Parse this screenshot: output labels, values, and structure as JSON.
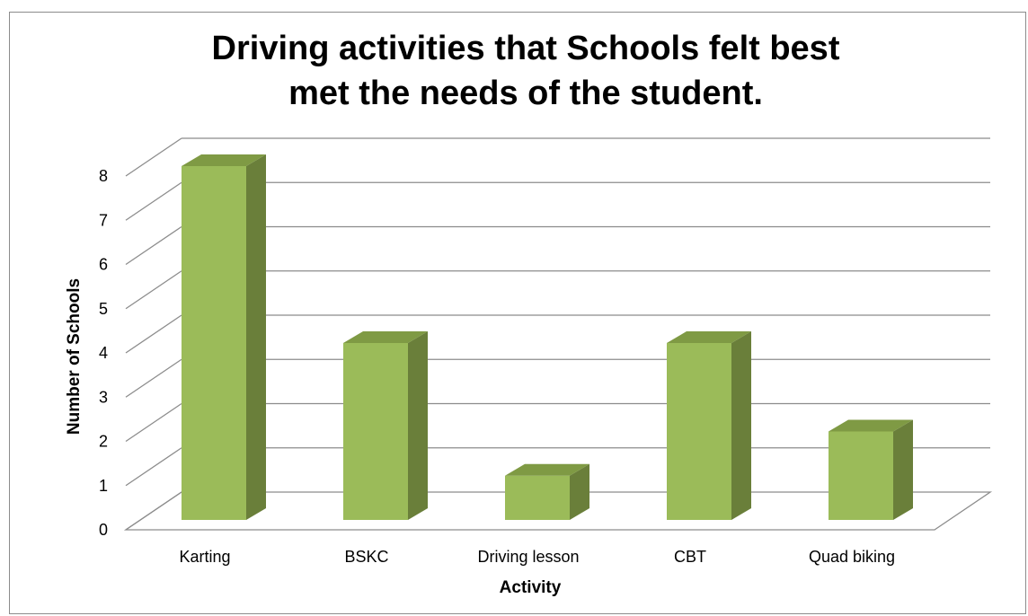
{
  "chart_data": {
    "type": "bar",
    "style": "3d-column",
    "title": "Driving activities that Schools felt best met the needs of the student.",
    "title_lines": [
      "Driving activities that Schools felt best",
      "met the needs of the student."
    ],
    "xlabel": "Activity",
    "ylabel": "Number of Schools",
    "categories": [
      "Karting",
      "BSKC",
      "Driving lesson",
      "CBT",
      "Quad biking"
    ],
    "values": [
      8,
      4,
      1,
      4,
      2
    ],
    "ylim": [
      0,
      8
    ],
    "yticks": [
      0,
      1,
      2,
      3,
      4,
      5,
      6,
      7,
      8
    ],
    "grid": true,
    "legend": "none",
    "colors": {
      "bar_front": "#9bbb59",
      "bar_side": "#6a7f3a",
      "bar_top": "#7f9a44",
      "gridline": "#8c8c8c"
    }
  }
}
